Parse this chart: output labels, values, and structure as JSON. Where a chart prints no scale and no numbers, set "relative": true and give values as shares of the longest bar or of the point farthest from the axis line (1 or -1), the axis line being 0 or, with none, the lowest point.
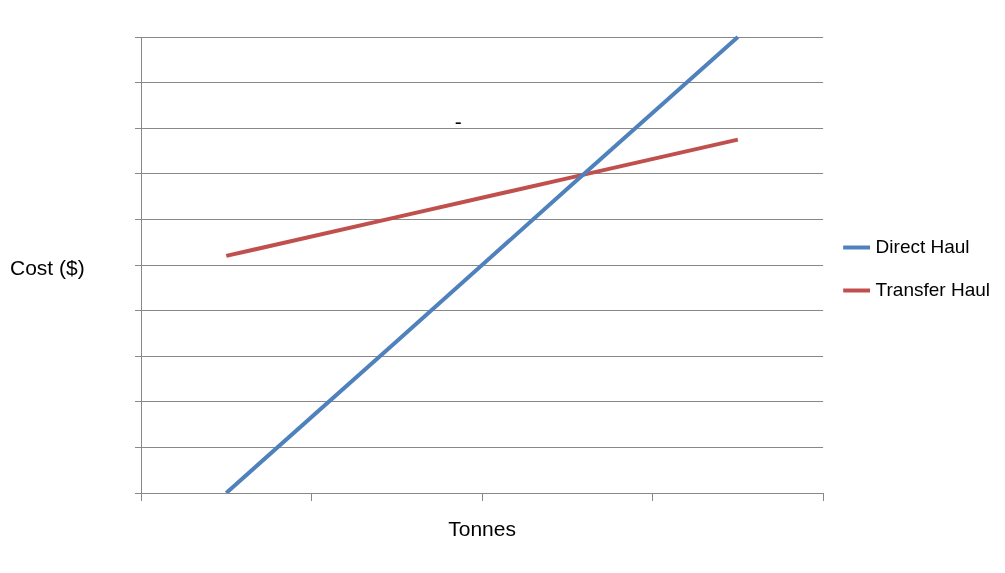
{
  "chart_data": {
    "type": "line",
    "xlabel": "Tonnes",
    "ylabel": "Cost ($)",
    "categories": [
      null,
      null,
      null,
      null
    ],
    "relative": true,
    "grid": "y",
    "legend": "right",
    "marker": "none",
    "annotations": [
      "-"
    ],
    "series": [
      {
        "name": "Direct Haul",
        "color": "#4f81bd",
        "values": [
          0,
          0.333,
          0.667,
          1
        ]
      },
      {
        "name": "Transfer Haul",
        "color": "#c0504d",
        "values": [
          0.52,
          0.605,
          0.69,
          0.775
        ]
      }
    ]
  }
}
